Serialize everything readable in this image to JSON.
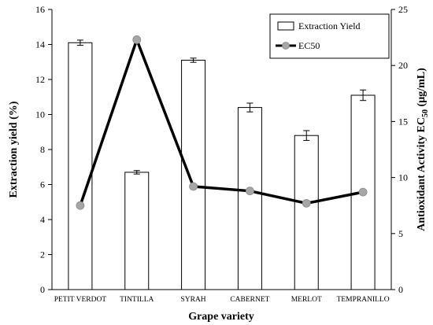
{
  "chart_data": {
    "type": "bar",
    "categories": [
      "PETIT VERDOT",
      "TINTILLA",
      "SYRAH",
      "CABERNET",
      "MERLOT",
      "TEMPRANILLO"
    ],
    "series": [
      {
        "name": "Extraction Yield",
        "type": "bar",
        "axis": "left",
        "values": [
          14.1,
          6.7,
          13.1,
          10.4,
          8.8,
          11.1
        ],
        "errors": [
          0.15,
          0.1,
          0.12,
          0.25,
          0.28,
          0.3
        ]
      },
      {
        "name": "EC50",
        "type": "line",
        "axis": "right",
        "values": [
          7.5,
          22.3,
          9.2,
          8.8,
          7.7,
          8.7
        ]
      }
    ],
    "xlabel": "Grape variety",
    "ylabel": "Extraction yield (%)",
    "y2label": {
      "main": "Antioxidant Activity EC",
      "sub": "50",
      "unit": " (µg/mL)"
    },
    "ylim": [
      0,
      16
    ],
    "y2lim": [
      0,
      25
    ],
    "yticks": [
      "0",
      "2",
      "4",
      "6",
      "8",
      "10",
      "12",
      "14",
      "16"
    ],
    "y2ticks": [
      "0",
      "5",
      "10",
      "15",
      "20",
      "25"
    ],
    "legend": {
      "position": "top-right",
      "entries": [
        "Extraction Yield",
        "EC50"
      ]
    },
    "grid": false,
    "colors": {
      "bar_fill": "#ffffff",
      "bar_stroke": "#000000",
      "line": "#000000",
      "marker": "#a6a6a6"
    }
  }
}
